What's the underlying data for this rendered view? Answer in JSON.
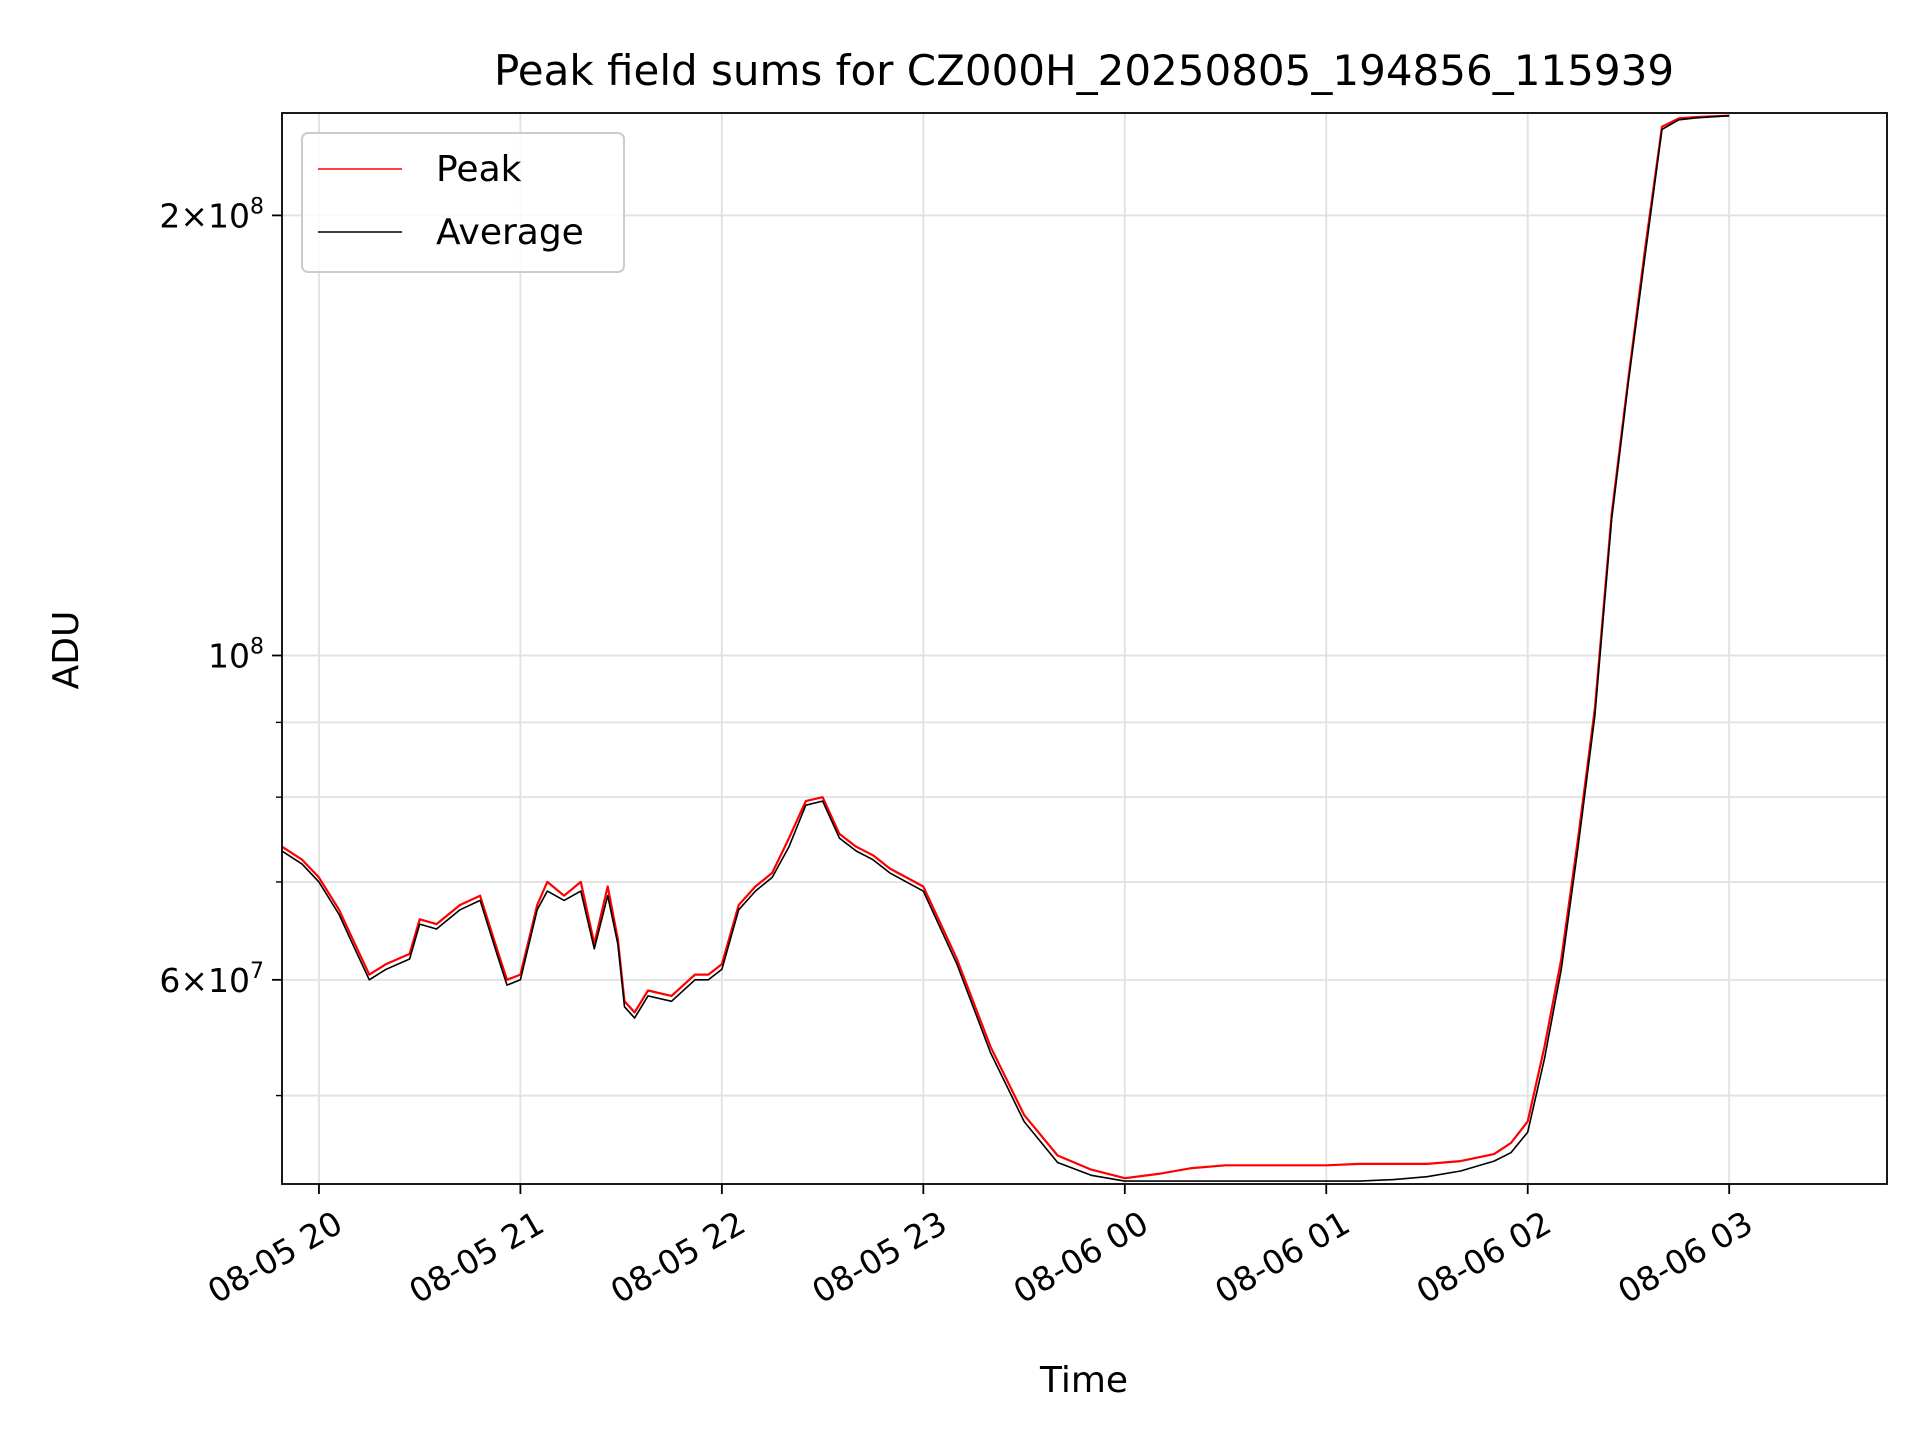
{
  "chart_data": {
    "type": "line",
    "title": "Peak field sums for CZ000H_20250805_194856_115939",
    "xlabel": "Time",
    "ylabel": "ADU",
    "yscale": "log",
    "xlim": [
      "2025-08-05 19:49",
      "2025-08-06 03:47"
    ],
    "ylim": [
      43500000,
      235000000
    ],
    "grid": true,
    "legend": "top-left",
    "x_ticks": [
      "08-05 20",
      "08-05 21",
      "08-05 22",
      "08-05 23",
      "08-06 00",
      "08-06 01",
      "08-06 02",
      "08-06 03"
    ],
    "y_ticks": [
      {
        "base": "6×10",
        "exp": "7",
        "value": 60000000
      },
      {
        "base": "10",
        "exp": "8",
        "value": 100000000
      },
      {
        "base": "2×10",
        "exp": "8",
        "value": 200000000
      }
    ],
    "series": [
      {
        "name": "Peak",
        "color": "#ff0000",
        "x": [
          "2025-08-05 19:49",
          "2025-08-05 19:55",
          "2025-08-05 20:00",
          "2025-08-05 20:06",
          "2025-08-05 20:10",
          "2025-08-05 20:15",
          "2025-08-05 20:20",
          "2025-08-05 20:27",
          "2025-08-05 20:30",
          "2025-08-05 20:35",
          "2025-08-05 20:42",
          "2025-08-05 20:48",
          "2025-08-05 20:53",
          "2025-08-05 20:56",
          "2025-08-05 21:00",
          "2025-08-05 21:05",
          "2025-08-05 21:08",
          "2025-08-05 21:13",
          "2025-08-05 21:18",
          "2025-08-05 21:22",
          "2025-08-05 21:26",
          "2025-08-05 21:29",
          "2025-08-05 21:31",
          "2025-08-05 21:34",
          "2025-08-05 21:38",
          "2025-08-05 21:45",
          "2025-08-05 21:52",
          "2025-08-05 21:56",
          "2025-08-05 22:00",
          "2025-08-05 22:05",
          "2025-08-05 22:10",
          "2025-08-05 22:15",
          "2025-08-05 22:20",
          "2025-08-05 22:25",
          "2025-08-05 22:30",
          "2025-08-05 22:35",
          "2025-08-05 22:40",
          "2025-08-05 22:45",
          "2025-08-05 22:50",
          "2025-08-05 23:00",
          "2025-08-05 23:10",
          "2025-08-05 23:20",
          "2025-08-05 23:30",
          "2025-08-05 23:40",
          "2025-08-05 23:50",
          "2025-08-06 00:00",
          "2025-08-06 00:10",
          "2025-08-06 00:20",
          "2025-08-06 00:30",
          "2025-08-06 00:40",
          "2025-08-06 00:50",
          "2025-08-06 01:00",
          "2025-08-06 01:10",
          "2025-08-06 01:20",
          "2025-08-06 01:30",
          "2025-08-06 01:40",
          "2025-08-06 01:50",
          "2025-08-06 01:55",
          "2025-08-06 02:00",
          "2025-08-06 02:05",
          "2025-08-06 02:10",
          "2025-08-06 02:15",
          "2025-08-06 02:20",
          "2025-08-06 02:25",
          "2025-08-06 02:30",
          "2025-08-06 02:35",
          "2025-08-06 02:40",
          "2025-08-06 02:45",
          "2025-08-06 02:50",
          "2025-08-06 02:55",
          "2025-08-06 03:00"
        ],
        "y": [
          74000000,
          72500000,
          70500000,
          67000000,
          64000000,
          60500000,
          61500000,
          62500000,
          66000000,
          65500000,
          67500000,
          68500000,
          63000000,
          60000000,
          60500000,
          67500000,
          70000000,
          68500000,
          70000000,
          63500000,
          69500000,
          64000000,
          58000000,
          57000000,
          59000000,
          58500000,
          60500000,
          60500000,
          61500000,
          67500000,
          69500000,
          71000000,
          75000000,
          79500000,
          80000000,
          75500000,
          74000000,
          73000000,
          71500000,
          69500000,
          62000000,
          54000000,
          48500000,
          45500000,
          44500000,
          43900000,
          44200000,
          44600000,
          44800000,
          44800000,
          44800000,
          44800000,
          44900000,
          44900000,
          44900000,
          45100000,
          45600000,
          46400000,
          48000000,
          54000000,
          62000000,
          75000000,
          92000000,
          125000000,
          155000000,
          190000000,
          230000000,
          233000000,
          233500000,
          233800000,
          234000000
        ]
      },
      {
        "name": "Average",
        "color": "#000000",
        "x": [
          "2025-08-05 19:49",
          "2025-08-05 19:55",
          "2025-08-05 20:00",
          "2025-08-05 20:06",
          "2025-08-05 20:10",
          "2025-08-05 20:15",
          "2025-08-05 20:20",
          "2025-08-05 20:27",
          "2025-08-05 20:30",
          "2025-08-05 20:35",
          "2025-08-05 20:42",
          "2025-08-05 20:48",
          "2025-08-05 20:53",
          "2025-08-05 20:56",
          "2025-08-05 21:00",
          "2025-08-05 21:05",
          "2025-08-05 21:08",
          "2025-08-05 21:13",
          "2025-08-05 21:18",
          "2025-08-05 21:22",
          "2025-08-05 21:26",
          "2025-08-05 21:29",
          "2025-08-05 21:31",
          "2025-08-05 21:34",
          "2025-08-05 21:38",
          "2025-08-05 21:45",
          "2025-08-05 21:52",
          "2025-08-05 21:56",
          "2025-08-05 22:00",
          "2025-08-05 22:05",
          "2025-08-05 22:10",
          "2025-08-05 22:15",
          "2025-08-05 22:20",
          "2025-08-05 22:25",
          "2025-08-05 22:30",
          "2025-08-05 22:35",
          "2025-08-05 22:40",
          "2025-08-05 22:45",
          "2025-08-05 22:50",
          "2025-08-05 23:00",
          "2025-08-05 23:10",
          "2025-08-05 23:20",
          "2025-08-05 23:30",
          "2025-08-05 23:40",
          "2025-08-05 23:50",
          "2025-08-06 00:00",
          "2025-08-06 00:10",
          "2025-08-06 00:20",
          "2025-08-06 00:30",
          "2025-08-06 00:40",
          "2025-08-06 00:50",
          "2025-08-06 01:00",
          "2025-08-06 01:10",
          "2025-08-06 01:20",
          "2025-08-06 01:30",
          "2025-08-06 01:40",
          "2025-08-06 01:50",
          "2025-08-06 01:55",
          "2025-08-06 02:00",
          "2025-08-06 02:05",
          "2025-08-06 02:10",
          "2025-08-06 02:15",
          "2025-08-06 02:20",
          "2025-08-06 02:25",
          "2025-08-06 02:30",
          "2025-08-06 02:35",
          "2025-08-06 02:40",
          "2025-08-06 02:45",
          "2025-08-06 02:50",
          "2025-08-06 02:55",
          "2025-08-06 03:00"
        ],
        "y": [
          73500000,
          72000000,
          70000000,
          66500000,
          63500000,
          60000000,
          61000000,
          62000000,
          65500000,
          65000000,
          67000000,
          68000000,
          62500000,
          59500000,
          60000000,
          67000000,
          69000000,
          68000000,
          69000000,
          63000000,
          68500000,
          63500000,
          57500000,
          56500000,
          58500000,
          58000000,
          60000000,
          60000000,
          61000000,
          67000000,
          69000000,
          70500000,
          74000000,
          79000000,
          79500000,
          75000000,
          73500000,
          72500000,
          71000000,
          69000000,
          61500000,
          53500000,
          48000000,
          45000000,
          44100000,
          43700000,
          43700000,
          43700000,
          43700000,
          43700000,
          43700000,
          43700000,
          43700000,
          43800000,
          44000000,
          44400000,
          45100000,
          45700000,
          47200000,
          53000000,
          61000000,
          74000000,
          91000000,
          124000000,
          154000000,
          188000000,
          229000000,
          232500000,
          233200000,
          233600000,
          234000000
        ]
      }
    ]
  }
}
